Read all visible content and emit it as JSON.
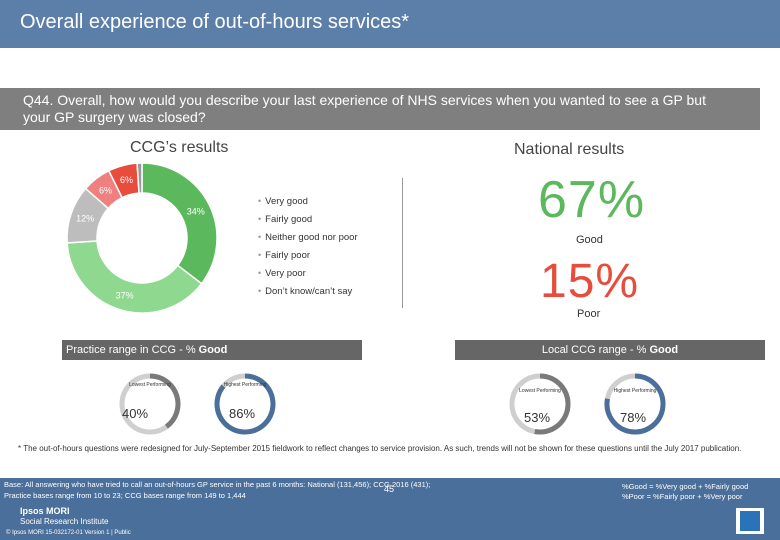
{
  "header": {
    "title": "Overall experience of out-of-hours services*"
  },
  "question": {
    "text": "Q44. Overall, how would you describe your last experience of NHS services when you wanted to see a GP but your GP surgery was closed?"
  },
  "ccg": {
    "title": "CCG’s results"
  },
  "national": {
    "title": "National results",
    "good_value": "67%",
    "good_label": "Good",
    "poor_value": "15%",
    "poor_label": "Poor"
  },
  "chart_data": {
    "type": "pie",
    "title": "CCG’s results",
    "categories": [
      "Very good",
      "Fairly good",
      "Neither good nor poor",
      "Fairly poor",
      "Very poor",
      "Don’t know/can’t say"
    ],
    "values": [
      34,
      37,
      12,
      6,
      6,
      1
    ],
    "labels": [
      "34%",
      "37%",
      "12%",
      "6%",
      "6%",
      ""
    ],
    "colors": [
      "#5cb85c",
      "#8fd88f",
      "#bdbdbd",
      "#f08080",
      "#e74c3c",
      "#999999"
    ]
  },
  "legend": [
    "Very good",
    "Fairly good",
    "Neither good nor poor",
    "Fairly poor",
    "Very poor",
    "Don’t know/can’t say"
  ],
  "practice_range": {
    "label_prefix": "Practice range in CCG - % ",
    "label_bold": "Good",
    "lowest_label": "Lowest Performing",
    "highest_label": "Highest Performing",
    "lowest_value": "40%",
    "highest_value": "86%",
    "lowest_fraction": 0.4,
    "highest_fraction": 0.86
  },
  "local_range": {
    "label_prefix": "Local CCG range - % ",
    "label_bold": "Good",
    "lowest_label": "Lowest Performing",
    "highest_label": "Highest Performing",
    "lowest_value": "53%",
    "highest_value": "78%",
    "lowest_fraction": 0.53,
    "highest_fraction": 0.78
  },
  "footnote": "* The out-of-hours questions were redesigned for July-September 2015 fieldwork to reflect changes to service provision. As such, trends will not be shown for these questions until the July 2017 publication.",
  "footer": {
    "base_line1": "Base: All answering who have tried to call an out-of-hours GP service in the past 6 months: National (131,456); CCG 2016 (431);",
    "base_line2": "Practice bases range from 10 to 23; CCG bases range from 149 to 1,444",
    "def_good": "%Good = %Very good + %Fairly good",
    "def_poor": "%Poor = %Fairly poor + %Very poor",
    "page_number": "45",
    "logo_line1": "Ipsos MORI",
    "logo_line2": "Social Research Institute",
    "copyright": "© Ipsos MORI    15-032172-01 Version 1 | Public"
  }
}
